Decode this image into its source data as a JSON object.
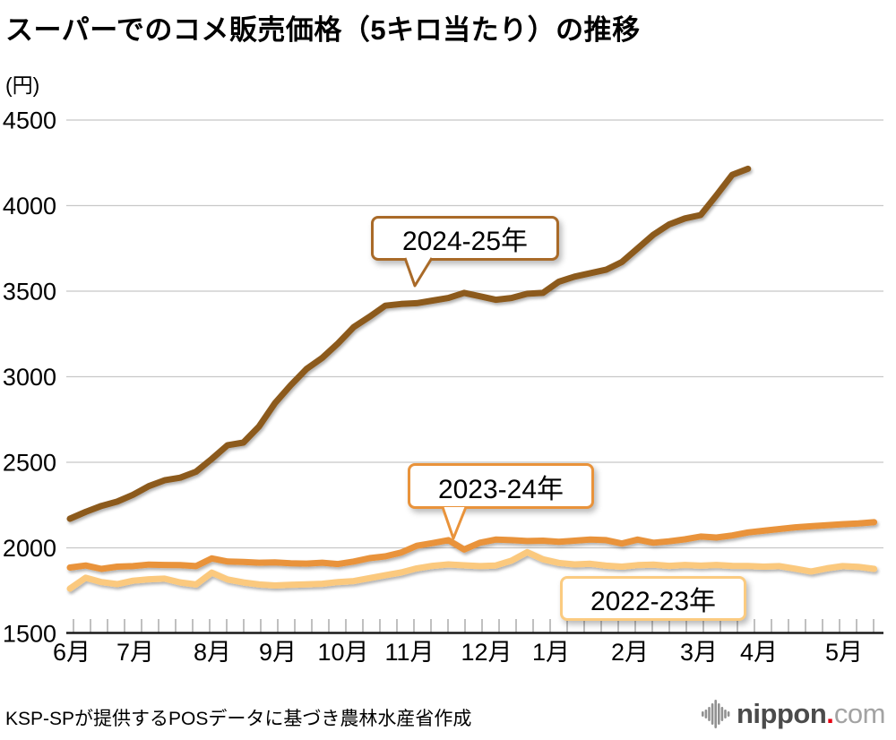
{
  "title": "スーパーでのコメ販売価格（5キロ当たり）の推移",
  "y_axis": {
    "unit": "(円)",
    "ticks": [
      4500,
      4000,
      3500,
      3000,
      2500,
      2000,
      1500
    ]
  },
  "x_axis": {
    "months": [
      "6月",
      "7月",
      "8月",
      "9月",
      "10月",
      "11月",
      "12月",
      "1月",
      "2月",
      "3月",
      "4月",
      "5月"
    ]
  },
  "source": "KSP-SPが提供するPOSデータに基づき農林水産省作成",
  "logo": {
    "name": "nippon",
    "dot": ".",
    "tld": "com"
  },
  "colors": {
    "series_2024_25": "#8C5A1E",
    "series_2023_24": "#E9933B",
    "series_2022_23": "#FBC97E",
    "gridline": "#C8C8C8",
    "axis": "#1A1A1A",
    "week_tick": "#9E9E9E"
  },
  "chart_data": {
    "type": "line",
    "title": "スーパーでのコメ販売価格（5キロ当たり）の推移",
    "ylabel": "円",
    "ylim": [
      1500,
      4500
    ],
    "x_unit": "week",
    "x_labels": [
      "6月",
      "7月",
      "8月",
      "9月",
      "10月",
      "11月",
      "12月",
      "1月",
      "2月",
      "3月",
      "4月",
      "5月"
    ],
    "grid": "horizontal",
    "legend_position": "inline-callouts",
    "series": [
      {
        "name": "2024-25年",
        "color": "#8C5A1E",
        "values": [
          2170,
          2210,
          2245,
          2270,
          2310,
          2360,
          2395,
          2410,
          2445,
          2520,
          2600,
          2615,
          2710,
          2845,
          2950,
          3045,
          3110,
          3195,
          3290,
          3350,
          3415,
          3425,
          3430,
          3445,
          3460,
          3490,
          3470,
          3450,
          3460,
          3485,
          3490,
          3555,
          3585,
          3605,
          3625,
          3670,
          3750,
          3830,
          3890,
          3925,
          3945,
          4060,
          4180,
          4215
        ]
      },
      {
        "name": "2023-24年",
        "color": "#E9933B",
        "values": [
          1885,
          1897,
          1877,
          1890,
          1893,
          1902,
          1900,
          1899,
          1893,
          1938,
          1920,
          1918,
          1913,
          1915,
          1910,
          1908,
          1913,
          1905,
          1920,
          1940,
          1950,
          1972,
          2012,
          2028,
          2045,
          1990,
          2030,
          2048,
          2045,
          2040,
          2042,
          2035,
          2042,
          2048,
          2045,
          2025,
          2048,
          2030,
          2038,
          2050,
          2066,
          2060,
          2072,
          2090,
          2100,
          2110,
          2120,
          2126,
          2132,
          2138,
          2143,
          2150
        ]
      },
      {
        "name": "2022-23年",
        "color": "#FBC97E",
        "values": [
          1762,
          1825,
          1800,
          1788,
          1808,
          1816,
          1820,
          1798,
          1786,
          1855,
          1815,
          1798,
          1786,
          1780,
          1784,
          1787,
          1790,
          1800,
          1806,
          1823,
          1840,
          1856,
          1880,
          1895,
          1903,
          1898,
          1893,
          1897,
          1925,
          1975,
          1933,
          1912,
          1903,
          1907,
          1896,
          1890,
          1899,
          1902,
          1895,
          1900,
          1896,
          1900,
          1895,
          1894,
          1890,
          1893,
          1878,
          1862,
          1880,
          1893,
          1889,
          1877
        ]
      }
    ]
  }
}
